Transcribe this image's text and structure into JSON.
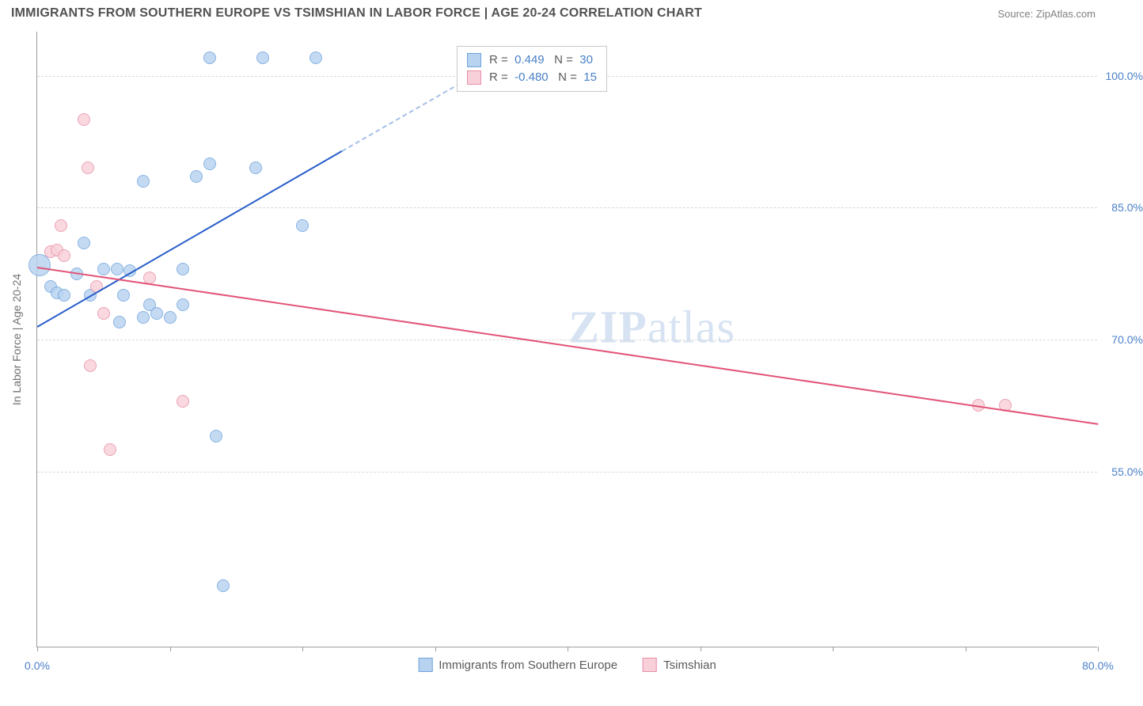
{
  "title": "IMMIGRANTS FROM SOUTHERN EUROPE VS TSIMSHIAN IN LABOR FORCE | AGE 20-24 CORRELATION CHART",
  "source": "Source: ZipAtlas.com",
  "ylabel": "In Labor Force | Age 20-24",
  "watermark_a": "ZIP",
  "watermark_b": "atlas",
  "chart": {
    "type": "scatter",
    "x_domain": [
      0,
      80
    ],
    "y_domain": [
      35,
      105
    ],
    "y_ticks": [
      55.0,
      70.0,
      85.0,
      100.0
    ],
    "y_tick_labels": [
      "55.0%",
      "70.0%",
      "85.0%",
      "100.0%"
    ],
    "x_ticks": [
      0,
      10,
      20,
      30,
      40,
      50,
      60,
      70,
      80
    ],
    "x_axis_labels": [
      {
        "v": 0,
        "t": "0.0%"
      },
      {
        "v": 80,
        "t": "80.0%"
      }
    ],
    "background_color": "#ffffff",
    "grid_color": "#d8d8d8",
    "axis_color": "#9e9e9e",
    "series": [
      {
        "name": "Immigrants from Southern Europe",
        "fill": "#b8d3f0",
        "stroke": "#6fa3dd",
        "trend_color": "#2a5fca",
        "trend_dash_color": "#a7c0e8",
        "r_value": "0.449",
        "n_value": "30",
        "trend": {
          "x1": 0,
          "y1": 71.5,
          "x2": 23,
          "y2": 91.5,
          "dash_to_x": 34,
          "dash_to_y": 101
        },
        "points": [
          {
            "x": 0.2,
            "y": 78.5,
            "r": 14
          },
          {
            "x": 1.0,
            "y": 76.0,
            "r": 8
          },
          {
            "x": 1.5,
            "y": 75.3,
            "r": 8
          },
          {
            "x": 2.0,
            "y": 75.0,
            "r": 8
          },
          {
            "x": 3.0,
            "y": 77.5,
            "r": 8
          },
          {
            "x": 3.5,
            "y": 81.0,
            "r": 8
          },
          {
            "x": 4.0,
            "y": 75.0,
            "r": 8
          },
          {
            "x": 5.0,
            "y": 78.0,
            "r": 8
          },
          {
            "x": 6.0,
            "y": 78.0,
            "r": 8
          },
          {
            "x": 6.2,
            "y": 72.0,
            "r": 8
          },
          {
            "x": 6.5,
            "y": 75.0,
            "r": 8
          },
          {
            "x": 7.0,
            "y": 77.8,
            "r": 8
          },
          {
            "x": 8.0,
            "y": 72.5,
            "r": 8
          },
          {
            "x": 8.0,
            "y": 88.0,
            "r": 8
          },
          {
            "x": 8.5,
            "y": 74.0,
            "r": 8
          },
          {
            "x": 9.0,
            "y": 73.0,
            "r": 8
          },
          {
            "x": 10.0,
            "y": 72.5,
            "r": 8
          },
          {
            "x": 11.0,
            "y": 74.0,
            "r": 8
          },
          {
            "x": 11.0,
            "y": 78.0,
            "r": 8
          },
          {
            "x": 12.0,
            "y": 88.5,
            "r": 8
          },
          {
            "x": 13.0,
            "y": 90.0,
            "r": 8
          },
          {
            "x": 13.0,
            "y": 102.0,
            "r": 8
          },
          {
            "x": 13.5,
            "y": 59.0,
            "r": 8
          },
          {
            "x": 14.0,
            "y": 42.0,
            "r": 8
          },
          {
            "x": 16.5,
            "y": 89.5,
            "r": 8
          },
          {
            "x": 17.0,
            "y": 102.0,
            "r": 8
          },
          {
            "x": 20.0,
            "y": 83.0,
            "r": 8
          },
          {
            "x": 21.0,
            "y": 102.0,
            "r": 8
          }
        ]
      },
      {
        "name": "Tsimshian",
        "fill": "#f8d0da",
        "stroke": "#e88fa8",
        "trend_color": "#e25578",
        "r_value": "-0.480",
        "n_value": "15",
        "trend": {
          "x1": 0,
          "y1": 78.3,
          "x2": 80,
          "y2": 60.5
        },
        "points": [
          {
            "x": 1.0,
            "y": 80.0,
            "r": 8
          },
          {
            "x": 1.5,
            "y": 80.2,
            "r": 8
          },
          {
            "x": 1.8,
            "y": 83.0,
            "r": 8
          },
          {
            "x": 2.0,
            "y": 79.5,
            "r": 8
          },
          {
            "x": 3.5,
            "y": 95.0,
            "r": 8
          },
          {
            "x": 3.8,
            "y": 89.5,
            "r": 8
          },
          {
            "x": 4.0,
            "y": 67.0,
            "r": 8
          },
          {
            "x": 4.5,
            "y": 76.0,
            "r": 8
          },
          {
            "x": 5.0,
            "y": 73.0,
            "r": 8
          },
          {
            "x": 5.5,
            "y": 57.5,
            "r": 8
          },
          {
            "x": 8.5,
            "y": 77.0,
            "r": 8
          },
          {
            "x": 11.0,
            "y": 63.0,
            "r": 8
          },
          {
            "x": 71.0,
            "y": 62.5,
            "r": 8
          },
          {
            "x": 73.0,
            "y": 62.5,
            "r": 8
          }
        ]
      }
    ]
  },
  "legend_top": {
    "rows": [
      {
        "swatch_fill": "#b8d3f0",
        "swatch_stroke": "#6fa3dd",
        "r_label": "R =",
        "r_val": "0.449",
        "n_label": "N =",
        "n_val": "30"
      },
      {
        "swatch_fill": "#f8d0da",
        "swatch_stroke": "#e88fa8",
        "r_label": "R =",
        "r_val": "-0.480",
        "n_label": "N =",
        "n_val": "15"
      }
    ]
  },
  "legend_bottom": [
    {
      "swatch_fill": "#b8d3f0",
      "swatch_stroke": "#6fa3dd",
      "label": "Immigrants from Southern Europe"
    },
    {
      "swatch_fill": "#f8d0da",
      "swatch_stroke": "#e88fa8",
      "label": "Tsimshian"
    }
  ]
}
